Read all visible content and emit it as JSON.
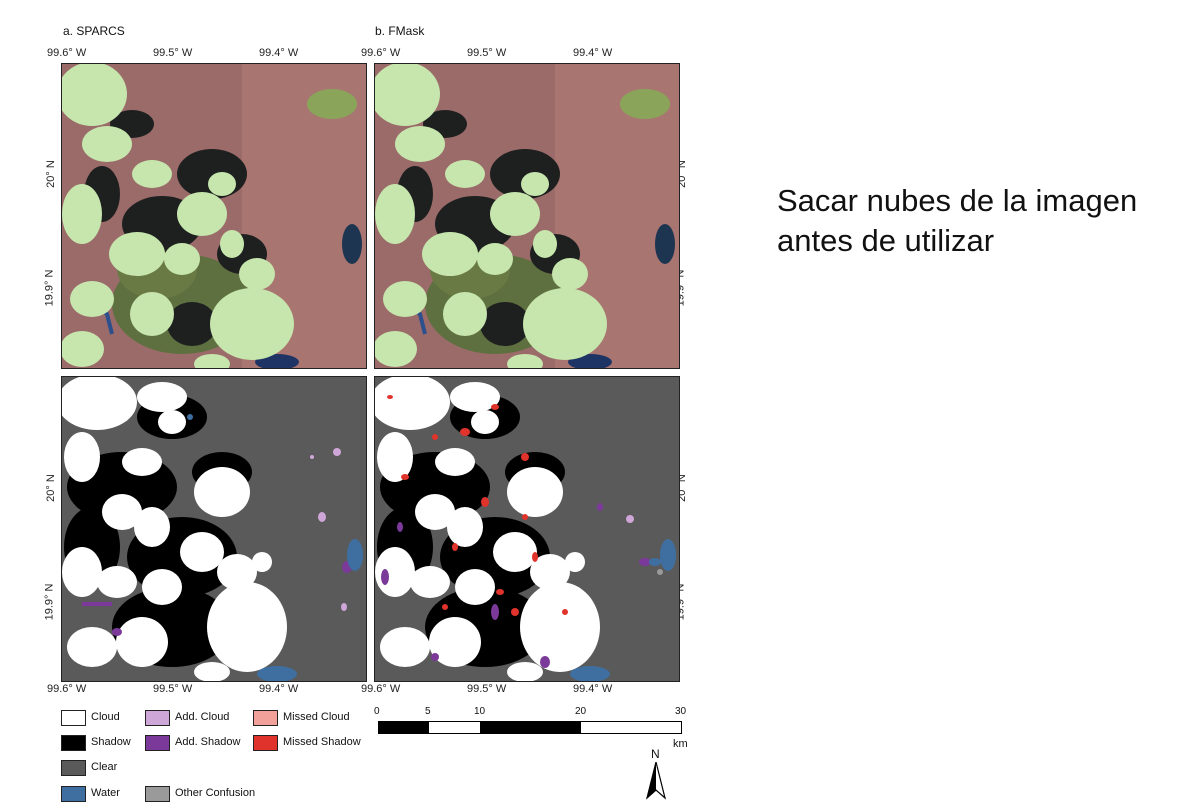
{
  "panels": [
    {
      "title": "a. SPARCS"
    },
    {
      "title": "b. FMask"
    }
  ],
  "longitude_ticks": [
    "99.6° W",
    "99.5° W",
    "99.4° W"
  ],
  "latitude_ticks": [
    "20° N",
    "19.9° N"
  ],
  "legend": {
    "items": [
      {
        "label": "Cloud",
        "color": "#ffffff"
      },
      {
        "label": "Shadow",
        "color": "#000000"
      },
      {
        "label": "Clear",
        "color": "#5a5a5a"
      },
      {
        "label": "Water",
        "color": "#3e6fa0"
      },
      {
        "label": "Add. Cloud",
        "color": "#cfa6d8"
      },
      {
        "label": "Add. Shadow",
        "color": "#7b3a9a"
      },
      {
        "label": "Other Confusion",
        "color": "#9a9a9a"
      },
      {
        "label": "Missed Cloud",
        "color": "#f2a09a"
      },
      {
        "label": "Missed Shadow",
        "color": "#e0332b"
      }
    ]
  },
  "scale_bar": {
    "ticks": [
      "0",
      "5",
      "10",
      "20",
      "30"
    ],
    "unit": "km"
  },
  "north_arrow": {
    "label": "N"
  },
  "slide_text": {
    "line1": "Sacar nubes de la imagen",
    "line2": "antes de utilizar"
  }
}
